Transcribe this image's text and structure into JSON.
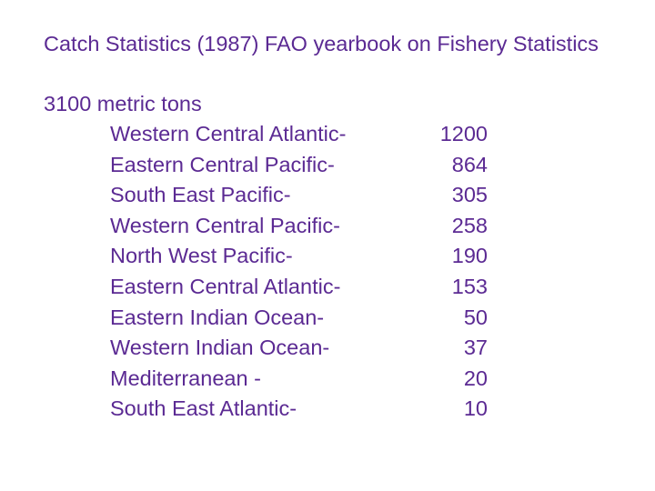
{
  "title": "Catch Statistics (1987) FAO yearbook on Fishery Statistics",
  "subtitle": "3100 metric tons",
  "table": {
    "rows": [
      [
        "Western Central Atlantic-",
        1200
      ],
      [
        "Eastern Central Pacific-",
        864
      ],
      [
        "South East Pacific-",
        305
      ],
      [
        "Western Central Pacific-",
        258
      ],
      [
        "North West Pacific-",
        190
      ],
      [
        "Eastern Central Atlantic-",
        153
      ],
      [
        "Eastern Indian Ocean-",
        50
      ],
      [
        "Western Indian Ocean-",
        37
      ],
      [
        "Mediterranean -",
        20
      ],
      [
        "South East Atlantic-",
        10
      ]
    ]
  }
}
